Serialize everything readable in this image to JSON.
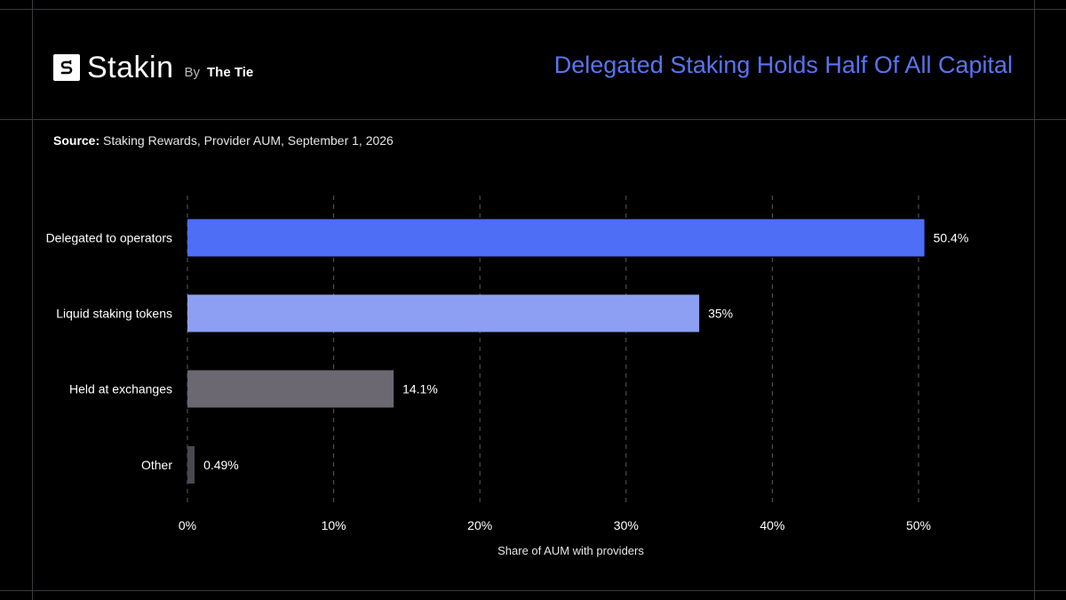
{
  "brand": {
    "name": "Stakin",
    "by": "By",
    "parent": "The Tie"
  },
  "headline": "Delegated Staking Holds Half Of All Capital",
  "source": {
    "label": "Source:",
    "text": "Staking Rewards, Provider AUM, September 1, 2026"
  },
  "chart_data": {
    "type": "bar",
    "orientation": "horizontal",
    "categories": [
      "Delegated to operators",
      "Liquid staking tokens",
      "Held at exchanges",
      "Other"
    ],
    "values": [
      50.4,
      35,
      14.1,
      0.49
    ],
    "value_labels": [
      "50.4%",
      "35%",
      "14.1%",
      "0.49%"
    ],
    "xlabel": "Share of AUM with providers",
    "xlim": [
      0,
      50
    ],
    "xticks": [
      0,
      10,
      20,
      30,
      40,
      50
    ],
    "xtick_labels": [
      "0%",
      "10%",
      "20%",
      "30%",
      "40%",
      "50%"
    ],
    "grid": "vertical dashed",
    "colors": [
      "#4d6ef5",
      "#8c9ff2",
      "#6b6872",
      "#4a4850"
    ]
  },
  "colors": {
    "background": "#000000",
    "accent": "#5874f2",
    "frame": "#3a3a3e",
    "grid": "#5a5a5e"
  }
}
